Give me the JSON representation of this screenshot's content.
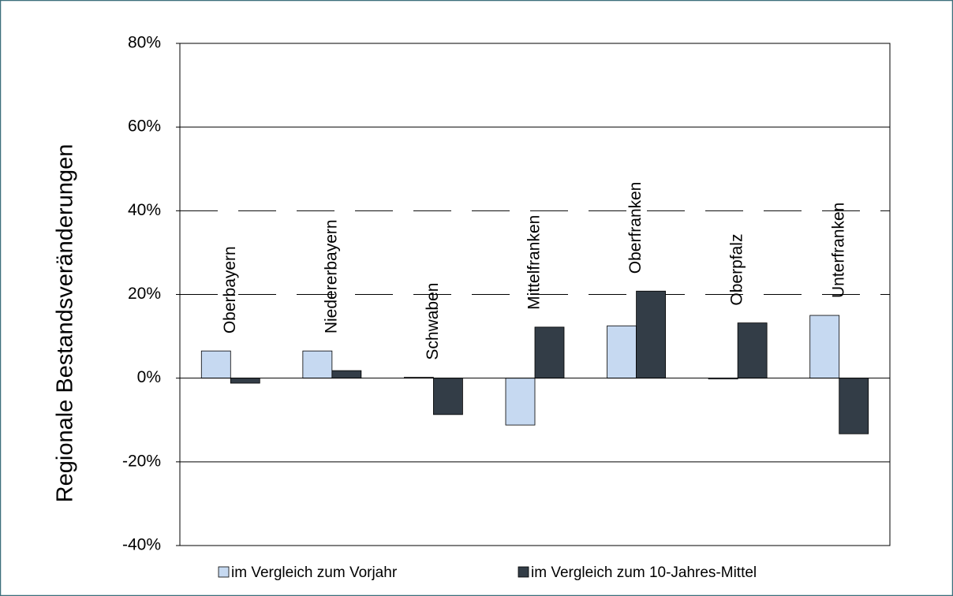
{
  "chart_data": {
    "type": "bar",
    "y_axis_label": "Regionale  Bestandsveränderungen",
    "categories": [
      "Oberbayern",
      "Niedererbayern",
      "Schwaben",
      "Mittelfranken",
      "Oberfranken",
      "Oberpfalz",
      "Unterfranken"
    ],
    "series": [
      {
        "name": "im Vergleich zum Vorjahr",
        "color": "#c6d9f1",
        "values": [
          6.5,
          6.5,
          0.2,
          -11.2,
          12.5,
          -0.2,
          15.0
        ]
      },
      {
        "name": "im Vergleich zum 10-Jahres-Mittel",
        "color": "#333d47",
        "values": [
          -1.2,
          1.8,
          -8.7,
          12.2,
          20.8,
          13.2,
          -13.3
        ]
      }
    ],
    "ylim": [
      -40,
      80
    ],
    "yticks": [
      {
        "value": -40,
        "label": "-40%"
      },
      {
        "value": -20,
        "label": "-20%"
      },
      {
        "value": 0,
        "label": "0%"
      },
      {
        "value": 20,
        "label": "20%"
      },
      {
        "value": 40,
        "label": "40%"
      },
      {
        "value": 60,
        "label": "60%"
      },
      {
        "value": 80,
        "label": "80%"
      }
    ],
    "grid_styles": [
      "none",
      "solid",
      "none",
      "dashed",
      "dashed",
      "solid",
      "none"
    ],
    "legend": "bottom"
  }
}
